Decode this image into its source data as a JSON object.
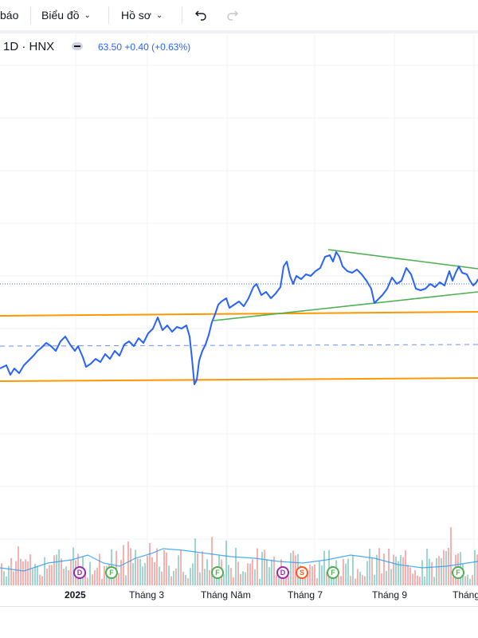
{
  "toolbar": {
    "alerts_label": "báo",
    "chart_label": "Biểu đồ",
    "profile_label": "Hồ sơ",
    "undo_icon": "undo-icon",
    "redo_icon": "redo-icon"
  },
  "legend": {
    "symbol": "1D · HNX",
    "last": "63.50",
    "change": "+0.40",
    "change_pct": "(+0.63%)"
  },
  "colors": {
    "price_line": "#2962ff",
    "trend_green": "#4caf50",
    "level_orange": "#ff9800",
    "vol_up": "#26a69a",
    "vol_down": "#ef5350",
    "vol_ma": "#2196f3",
    "dividend": "#9c27b0",
    "split": "#ff5722",
    "financial": "#4caf50"
  },
  "xaxis": {
    "labels": [
      "2025",
      "Tháng 3",
      "Tháng Năm",
      "Tháng 7",
      "Tháng 9",
      "Tháng"
    ]
  },
  "events": [
    {
      "letter": "D",
      "type": "dividend"
    },
    {
      "letter": "F",
      "type": "financial"
    },
    {
      "letter": "F",
      "type": "financial"
    },
    {
      "letter": "D",
      "type": "dividend"
    },
    {
      "letter": "S",
      "type": "split"
    },
    {
      "letter": "F",
      "type": "financial"
    },
    {
      "letter": "F",
      "type": "financial"
    }
  ]
}
